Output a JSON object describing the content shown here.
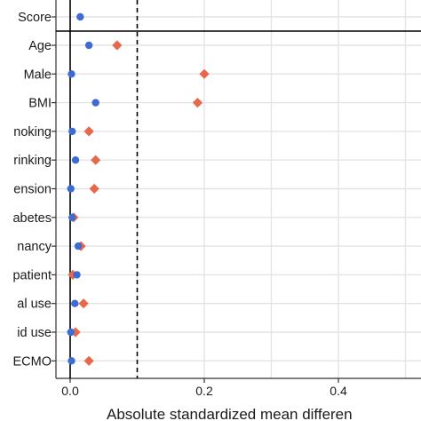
{
  "chart_data": {
    "type": "scatter",
    "xlabel": "Absolute standardized mean differen",
    "xlim": [
      -0.04,
      0.53
    ],
    "x_ticks": [
      "0.0",
      "0.2",
      "0.4"
    ],
    "x_tick_values": [
      0.0,
      0.2,
      0.4
    ],
    "threshold_line": 0.1,
    "grid": true,
    "top_row": {
      "label": "Score",
      "value": 0.015
    },
    "categories": [
      "Age",
      "Male",
      "BMI",
      "noking",
      "rinking",
      "ension",
      "abetes",
      "nancy",
      "patient",
      "al use",
      "id use",
      "ECMO"
    ],
    "series": [
      {
        "marker": "diamond",
        "color": "#e8684a",
        "values": [
          0.07,
          0.2,
          0.19,
          0.028,
          0.038,
          0.036,
          0.005,
          0.016,
          0.004,
          0.02,
          0.008,
          0.028
        ]
      },
      {
        "marker": "circle",
        "color": "#3f6cd4",
        "values": [
          0.028,
          0.002,
          0.038,
          0.003,
          0.008,
          0.001,
          0.003,
          0.012,
          0.01,
          0.007,
          0.001,
          0.002
        ]
      }
    ]
  }
}
